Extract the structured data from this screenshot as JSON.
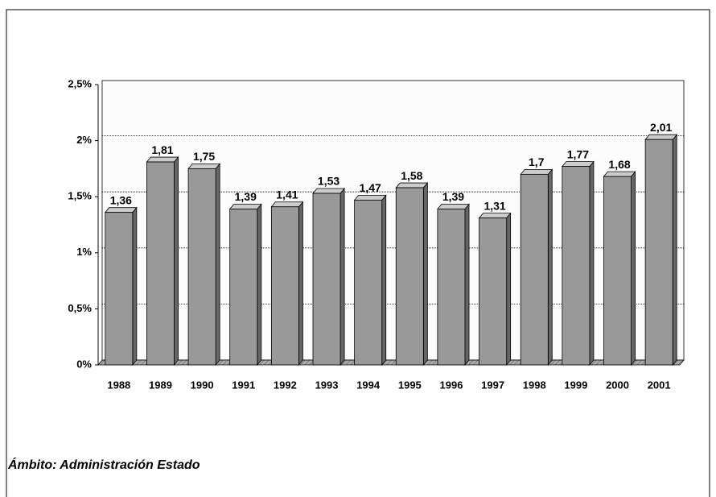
{
  "chart_data": {
    "type": "bar",
    "categories": [
      "1988",
      "1989",
      "1990",
      "1991",
      "1992",
      "1993",
      "1994",
      "1995",
      "1996",
      "1997",
      "1998",
      "1999",
      "2000",
      "2001"
    ],
    "values": [
      1.36,
      1.81,
      1.75,
      1.39,
      1.41,
      1.53,
      1.47,
      1.58,
      1.39,
      1.31,
      1.7,
      1.77,
      1.68,
      2.01
    ],
    "value_labels": [
      "1,36",
      "1,81",
      "1,75",
      "1,39",
      "1,41",
      "1,53",
      "1,47",
      "1,58",
      "1,39",
      "1,31",
      "1,7",
      "1,77",
      "1,68",
      "2,01"
    ],
    "color": "#999999",
    "ylim": [
      0,
      2.5
    ],
    "yticks": [
      {
        "value": 0,
        "label": "0%"
      },
      {
        "value": 0.5,
        "label": "0,5%"
      },
      {
        "value": 1,
        "label": "1%"
      },
      {
        "value": 1.5,
        "label": "1,5%"
      },
      {
        "value": 2,
        "label": "2%"
      },
      {
        "value": 2.5,
        "label": "2,5%"
      }
    ],
    "grid": true,
    "annotation": "Ámbito: Administración Estado"
  }
}
